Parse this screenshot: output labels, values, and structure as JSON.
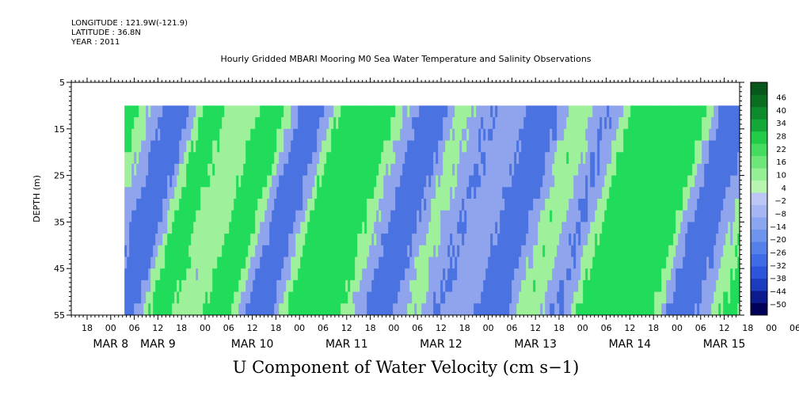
{
  "header": {
    "longitude": "LONGITUDE : 121.9W(-121.9)",
    "latitude": "LATITUDE : 36.8N",
    "year": "YEAR : 2011"
  },
  "title": "Hourly Gridded MBARI Mooring M0 Sea Water Temperature and Salinity Observations",
  "footer": "U Component of Water Velocity (cm s−1)",
  "chart_data": {
    "type": "heatmap",
    "title": "Hourly Gridded MBARI Mooring M0 Sea Water Temperature and Salinity Observations",
    "xlabel": "",
    "ylabel": "DEPTH (m)",
    "ylim": [
      55,
      5
    ],
    "yticks": [
      5,
      15,
      25,
      35,
      45,
      55
    ],
    "data_depth_range": [
      10,
      55
    ],
    "hour_ticks": [
      "18",
      "00",
      "06",
      "12",
      "18",
      "00",
      "06",
      "12",
      "18",
      "00",
      "06",
      "12",
      "18",
      "00",
      "06",
      "12",
      "18",
      "00",
      "06",
      "12",
      "18",
      "00",
      "06",
      "12",
      "18",
      "00",
      "06",
      "12",
      "18",
      "00",
      "06",
      "12"
    ],
    "day_labels": [
      {
        "label": "MAR  8",
        "tick_index": 1
      },
      {
        "label": "MAR  9",
        "tick_index": 3
      },
      {
        "label": "MAR 10",
        "tick_index": 7
      },
      {
        "label": "MAR 11",
        "tick_index": 11
      },
      {
        "label": "MAR 12",
        "tick_index": 15
      },
      {
        "label": "MAR 13",
        "tick_index": 19
      },
      {
        "label": "MAR 14",
        "tick_index": 23
      },
      {
        "label": "MAR 15",
        "tick_index": 27
      }
    ],
    "colorbar": {
      "levels": [
        -50,
        -44,
        -38,
        -32,
        -26,
        -20,
        -14,
        -8,
        -2,
        4,
        10,
        16,
        22,
        28,
        34,
        40,
        46
      ],
      "colors": [
        "#00005a",
        "#0b1a8c",
        "#1c3cc0",
        "#2d55dc",
        "#3f6ce6",
        "#5580ea",
        "#6f94ee",
        "#8aa6f0",
        "#a5b6f2",
        "#bcc6f4",
        "#b7f5b0",
        "#95f095",
        "#6ee67a",
        "#45dc60",
        "#22cc48",
        "#14a838",
        "#0d8a2c",
        "#0a6e22",
        "#07561a"
      ],
      "fill_colors": {
        "strong_negative": "#4a72e0",
        "weak_negative": "#8fa4ec",
        "near_zero": "#9ff09a",
        "positive": "#20dc5a"
      }
    },
    "field_summary": {
      "positive_bands_hour_centers": [
        9,
        31,
        47,
        66,
        74,
        97,
        127,
        140,
        149,
        154,
        178,
        188,
        194,
        219,
        226,
        242,
        268,
        278
      ],
      "negative_bands_hour_centers": [
        23,
        57,
        88,
        100,
        116,
        131,
        164,
        184,
        205,
        236,
        256,
        271,
        282
      ]
    },
    "footer_label": "U Component of Water Velocity (cm s−1)"
  }
}
